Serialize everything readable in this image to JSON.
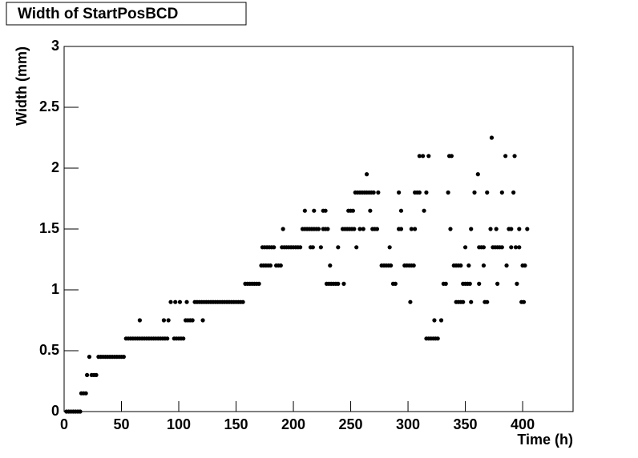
{
  "chart_data": {
    "type": "scatter",
    "title": "Width of StartPosBCD",
    "x_label": "Time (h)",
    "y_label": "Width (mm)",
    "color": "#000000",
    "xlim": [
      0,
      444
    ],
    "ylim": [
      0,
      3
    ],
    "xticks": [
      0,
      50,
      100,
      150,
      200,
      250,
      300,
      350,
      400
    ],
    "yticks": [
      0,
      0.5,
      1,
      1.5,
      2,
      2.5,
      3
    ],
    "x": [
      2,
      4,
      6,
      8,
      10,
      12,
      14,
      15,
      17,
      19,
      20,
      22,
      24,
      26,
      28,
      30,
      32,
      34,
      36,
      38,
      40,
      42,
      44,
      46,
      48,
      50,
      52,
      54,
      56,
      58,
      60,
      62,
      64,
      66,
      68,
      70,
      72,
      74,
      76,
      78,
      80,
      82,
      84,
      86,
      88,
      90,
      66,
      87,
      91,
      93,
      97,
      96,
      98,
      100,
      102,
      104,
      106,
      108,
      110,
      112,
      101,
      107,
      121,
      114,
      116,
      118,
      120,
      122,
      124,
      126,
      128,
      130,
      132,
      134,
      136,
      138,
      140,
      142,
      144,
      146,
      148,
      150,
      152,
      154,
      156,
      158,
      160,
      162,
      164,
      166,
      168,
      170,
      172,
      174,
      176,
      178,
      180,
      173,
      175,
      177,
      179,
      181,
      183,
      185,
      187,
      189,
      190,
      192,
      194,
      196,
      198,
      200,
      202,
      204,
      206,
      191,
      208,
      210,
      212,
      214,
      216,
      218,
      220,
      222,
      210,
      218,
      226,
      228,
      215,
      217,
      224,
      226,
      228,
      230,
      232,
      229,
      231,
      233,
      235,
      237,
      239,
      244,
      239,
      243,
      245,
      247,
      249,
      251,
      253,
      248,
      250,
      252,
      254,
      256,
      258,
      260,
      262,
      264,
      266,
      268,
      270,
      264,
      255,
      258,
      261,
      269,
      271,
      267,
      274,
      273,
      277,
      279,
      281,
      283,
      285,
      284,
      287,
      289,
      292,
      294,
      292,
      294,
      297,
      299,
      301,
      303,
      305,
      302,
      306,
      308,
      310,
      310,
      313,
      318,
      314,
      316,
      303,
      306,
      316,
      318,
      320,
      322,
      324,
      326,
      323,
      329,
      331,
      333,
      336,
      338,
      335,
      337,
      340,
      342,
      344,
      346,
      342,
      344,
      346,
      348,
      348,
      350,
      352,
      354,
      350,
      353,
      355,
      355,
      358,
      361,
      362,
      364,
      366,
      362,
      366,
      367,
      369,
      369,
      372,
      373,
      374,
      376,
      378,
      380,
      382,
      377,
      378,
      382,
      385,
      386,
      388,
      390,
      392,
      393,
      390,
      394,
      397,
      395,
      397,
      399,
      401,
      400,
      402,
      404
    ],
    "values": [
      0,
      0,
      0,
      0,
      0,
      0,
      0,
      0.15,
      0.15,
      0.15,
      0.3,
      0.45,
      0.3,
      0.3,
      0.3,
      0.45,
      0.45,
      0.45,
      0.45,
      0.45,
      0.45,
      0.45,
      0.45,
      0.45,
      0.45,
      0.45,
      0.45,
      0.6,
      0.6,
      0.6,
      0.6,
      0.6,
      0.6,
      0.6,
      0.6,
      0.6,
      0.6,
      0.6,
      0.6,
      0.6,
      0.6,
      0.6,
      0.6,
      0.6,
      0.6,
      0.6,
      0.75,
      0.75,
      0.75,
      0.9,
      0.9,
      0.6,
      0.6,
      0.6,
      0.6,
      0.6,
      0.75,
      0.75,
      0.75,
      0.75,
      0.9,
      0.9,
      0.75,
      0.9,
      0.9,
      0.9,
      0.9,
      0.9,
      0.9,
      0.9,
      0.9,
      0.9,
      0.9,
      0.9,
      0.9,
      0.9,
      0.9,
      0.9,
      0.9,
      0.9,
      0.9,
      0.9,
      0.9,
      0.9,
      0.9,
      1.05,
      1.05,
      1.05,
      1.05,
      1.05,
      1.05,
      1.05,
      1.2,
      1.2,
      1.2,
      1.2,
      1.2,
      1.35,
      1.35,
      1.35,
      1.35,
      1.35,
      1.35,
      1.2,
      1.2,
      1.2,
      1.35,
      1.35,
      1.35,
      1.35,
      1.35,
      1.35,
      1.35,
      1.35,
      1.35,
      1.5,
      1.5,
      1.5,
      1.5,
      1.5,
      1.5,
      1.5,
      1.5,
      1.5,
      1.65,
      1.65,
      1.65,
      1.65,
      1.35,
      1.35,
      1.35,
      1.5,
      1.5,
      1.5,
      1.2,
      1.05,
      1.05,
      1.05,
      1.05,
      1.05,
      1.05,
      1.05,
      1.35,
      1.5,
      1.5,
      1.5,
      1.5,
      1.5,
      1.5,
      1.65,
      1.65,
      1.65,
      1.8,
      1.8,
      1.8,
      1.8,
      1.8,
      1.8,
      1.8,
      1.8,
      1.8,
      1.95,
      1.35,
      1.5,
      1.5,
      1.5,
      1.5,
      1.65,
      1.8,
      1.5,
      1.2,
      1.2,
      1.2,
      1.2,
      1.2,
      1.35,
      1.05,
      1.05,
      1.5,
      1.5,
      1.8,
      1.65,
      1.2,
      1.2,
      1.2,
      1.2,
      1.2,
      0.9,
      1.8,
      1.8,
      1.8,
      2.1,
      2.1,
      2.1,
      1.65,
      1.8,
      1.5,
      1.5,
      0.6,
      0.6,
      0.6,
      0.6,
      0.6,
      0.6,
      0.75,
      0.75,
      1.05,
      1.05,
      2.1,
      2.1,
      1.8,
      1.5,
      1.2,
      1.2,
      1.2,
      1.2,
      0.9,
      0.9,
      0.9,
      0.9,
      1.05,
      1.05,
      1.05,
      1.05,
      1.35,
      1.2,
      0.9,
      1.5,
      1.8,
      1.95,
      1.35,
      1.35,
      1.35,
      1.05,
      1.2,
      0.9,
      0.9,
      1.8,
      1.5,
      2.25,
      1.35,
      1.35,
      1.35,
      1.35,
      1.35,
      1.5,
      1.05,
      1.8,
      2.1,
      1.2,
      1.5,
      1.5,
      1.8,
      2.1,
      1.35,
      1.35,
      1.35,
      1.05,
      1.5,
      0.9,
      0.9,
      1.2,
      1.2,
      1.5
    ]
  }
}
